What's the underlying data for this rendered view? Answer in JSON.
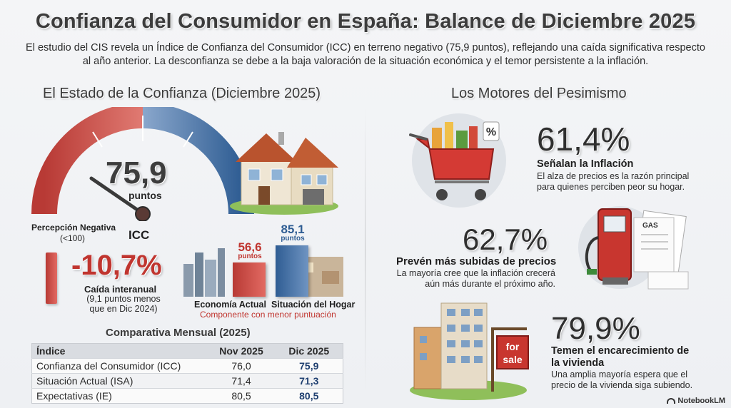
{
  "title": "Confianza del Consumidor en España: Balance de Diciembre 2025",
  "intro": "El estudio del CIS revela un Índice de Confianza del Consumidor (ICC) en terreno negativo (75,9 puntos), reflejando una caída significativa respecto al año anterior. La desconfianza se debe a la baja valoración de la situación económica y el temor persistente a la inflación.",
  "left": {
    "section_title": "El Estado de la Confianza (Diciembre 2025)",
    "gauge": {
      "value_text": "75,9",
      "value": 75.9,
      "unit": "puntos",
      "name": "ICC",
      "negative_label": "Percepción Negativa",
      "negative_range": "(<100)",
      "colors": {
        "red": "#c8423c",
        "blue": "#3d6a9e"
      }
    },
    "drop": {
      "value": "-10,7%",
      "label": "Caída interanual",
      "detail": "(9,1 puntos menos que en Dic 2024)"
    },
    "bars": {
      "items": [
        {
          "label": "Economía Actual",
          "value_text": "56,6",
          "unit": "puntos",
          "value": 56.6,
          "color": "#c8423c"
        },
        {
          "label": "Situación del Hogar",
          "value_text": "85,1",
          "unit": "puntos",
          "value": 85.1,
          "color": "#3d6a9e"
        }
      ],
      "note": "Componente con menor puntuación"
    },
    "table": {
      "title": "Comparativa Mensual (2025)",
      "headers": [
        "Índice",
        "Nov 2025",
        "Dic 2025"
      ],
      "rows": [
        [
          "Confianza del Consumidor (ICC)",
          "76,0",
          "75,9"
        ],
        [
          "Situación Actual (ISA)",
          "71,4",
          "71,3"
        ],
        [
          "Expectativas (IE)",
          "80,5",
          "80,5"
        ]
      ]
    }
  },
  "right": {
    "section_title": "Los Motores del Pesimismo",
    "items": [
      {
        "value": "61,4%",
        "head": "Señalan la Inflación",
        "desc": "El alza de precios es la razón principal para quienes perciben peor su hogar.",
        "icon": "shopping-cart-icon"
      },
      {
        "value": "62,7%",
        "head": "Prevén más subidas de precios",
        "desc": "La mayoría cree que la inflación crecerá aún más durante el próximo año.",
        "icon": "gas-pump-icon"
      },
      {
        "value": "79,9%",
        "head": "Temen el encarecimiento de la vivienda",
        "desc": "Una amplia mayoría espera que el precio de la vivienda siga subiendo.",
        "icon": "building-for-sale-icon"
      }
    ],
    "sale_sign": "for sale",
    "gas_label": "GAS",
    "pct_tag": "%"
  },
  "footer": "NotebookLM"
}
